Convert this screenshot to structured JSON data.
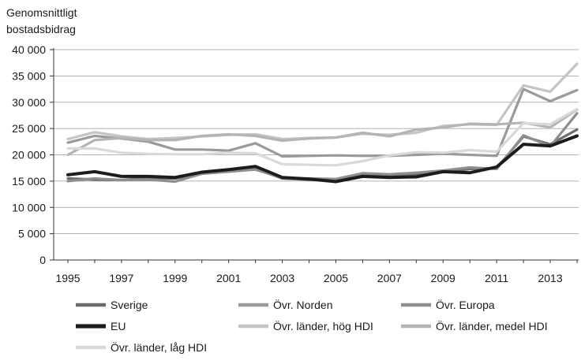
{
  "chart_data": {
    "type": "line",
    "ylabel": "Genomsnittligt bostadsbidrag",
    "ylabel_lines": [
      "Genomsnittligt",
      "bostadsbidrag"
    ],
    "ylim": [
      0,
      40000
    ],
    "yticks": [
      0,
      5000,
      10000,
      15000,
      20000,
      25000,
      30000,
      35000,
      40000
    ],
    "ytick_labels": [
      "0",
      "5 000",
      "10 000",
      "15 000",
      "20 000",
      "25 000",
      "30 000",
      "35 000",
      "40 000"
    ],
    "xlim": [
      1995,
      2014
    ],
    "xtick_labels": [
      "1995",
      "1997",
      "1999",
      "2001",
      "2003",
      "2005",
      "2007",
      "2009",
      "2011",
      "2013"
    ],
    "xtick_values": [
      1995,
      1997,
      1999,
      2001,
      2003,
      2005,
      2007,
      2009,
      2011,
      2013
    ],
    "grid": true,
    "legend_position": "bottom",
    "x": [
      1995,
      1996,
      1997,
      1998,
      1999,
      2000,
      2001,
      2002,
      2003,
      2004,
      2005,
      2006,
      2007,
      2008,
      2009,
      2010,
      2011,
      2012,
      2013,
      2014
    ],
    "series": [
      {
        "name": "Sverige",
        "color": "#6b6b6b",
        "width": 3.2,
        "values": [
          15500,
          15300,
          15200,
          15600,
          15500,
          16500,
          16900,
          17300,
          15500,
          15300,
          15200,
          16200,
          16000,
          16300,
          16700,
          17300,
          17500,
          23500,
          22000,
          24800
        ]
      },
      {
        "name": "Övr. Norden",
        "color": "#9a9a9a",
        "width": 3.2,
        "values": [
          22300,
          23600,
          23100,
          22500,
          21000,
          21000,
          20800,
          22200,
          19700,
          19800,
          19900,
          19800,
          19800,
          20000,
          20200,
          20000,
          19800,
          32500,
          30200,
          32300
        ]
      },
      {
        "name": "Övr. Europa",
        "color": "#8e8e8e",
        "width": 3.2,
        "values": [
          15000,
          15500,
          15200,
          15300,
          14900,
          16400,
          16800,
          17200,
          15600,
          15500,
          15400,
          16500,
          16300,
          16600,
          17000,
          17600,
          17300,
          23700,
          21600,
          27900
        ]
      },
      {
        "name": "EU",
        "color": "#1c1c1c",
        "width": 4.0,
        "values": [
          16200,
          16800,
          15900,
          15900,
          15700,
          16700,
          17200,
          17800,
          15700,
          15400,
          14900,
          15900,
          15700,
          15800,
          16800,
          16600,
          17700,
          22000,
          21700,
          23600
        ]
      },
      {
        "name": "Övr. länder, hög HDI",
        "color": "#c4c4c4",
        "width": 3.2,
        "values": [
          23000,
          24300,
          23500,
          23000,
          23200,
          23500,
          23800,
          23900,
          23000,
          23200,
          23300,
          24000,
          23800,
          24200,
          25500,
          25800,
          25700,
          33200,
          32000,
          37300
        ]
      },
      {
        "name": "Övr. länder, medel HDI",
        "color": "#b4b4b4",
        "width": 3.2,
        "values": [
          20000,
          22800,
          23200,
          22800,
          22800,
          23600,
          23900,
          23600,
          22700,
          23100,
          23300,
          24200,
          23500,
          24800,
          25200,
          25900,
          25800,
          26100,
          25200,
          28600
        ]
      },
      {
        "name": "Övr. länder, låg HDI",
        "color": "#d9d9d9",
        "width": 3.2,
        "values": [
          21200,
          21200,
          20400,
          20200,
          20100,
          20100,
          20400,
          20300,
          18200,
          18100,
          18000,
          18800,
          19900,
          20500,
          20400,
          20900,
          20600,
          26000,
          25800,
          28700
        ]
      }
    ]
  }
}
